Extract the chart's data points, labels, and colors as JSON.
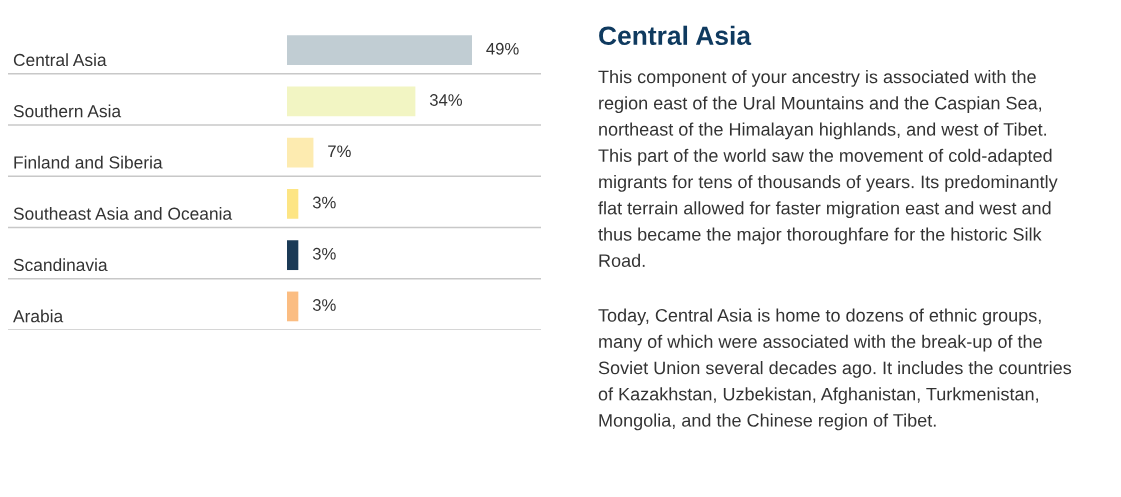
{
  "chart_data": [
    {
      "type": "bar",
      "orientation": "horizontal",
      "categories": [
        "Central Asia",
        "Southern Asia",
        "Finland and Siberia",
        "Southeast Asia and Oceania",
        "Scandinavia",
        "Arabia"
      ],
      "values": [
        49,
        34,
        7,
        3,
        3,
        3
      ],
      "colors": [
        "#c1cdd3",
        "#f2f5c3",
        "#fdebb0",
        "#fde584",
        "#1b3a56",
        "#fbbd82"
      ],
      "value_labels": [
        "49%",
        "34%",
        "7%",
        "3%",
        "3%",
        "3%"
      ],
      "grid": "y"
    },
    {
      "type": "other",
      "title": "Central Asia",
      "annotations": [
        "This component of your ancestry is associated with the\nregion east of the Ural Mountains and the Caspian Sea,\nnortheast of the Himalayan highlands, and west of Tibet.\nThis part of the world saw the movement of cold-adapted\nmigrants for tens of thousands of years. Its predominantly\nflat terrain allowed for faster migration east and west and\nthus became the major thoroughfare for the historic Silk\nRoad.",
        "Today, Central Asia is home to dozens of ethnic groups,\nmany of which were associated with the break-up of the\nSoviet Union several decades ago. It includes the countries\nof Kazakhstan, Uzbekistan, Afghanistan, Turkmenistan,\nMongolia, and the Chinese region of Tibet."
      ]
    }
  ]
}
